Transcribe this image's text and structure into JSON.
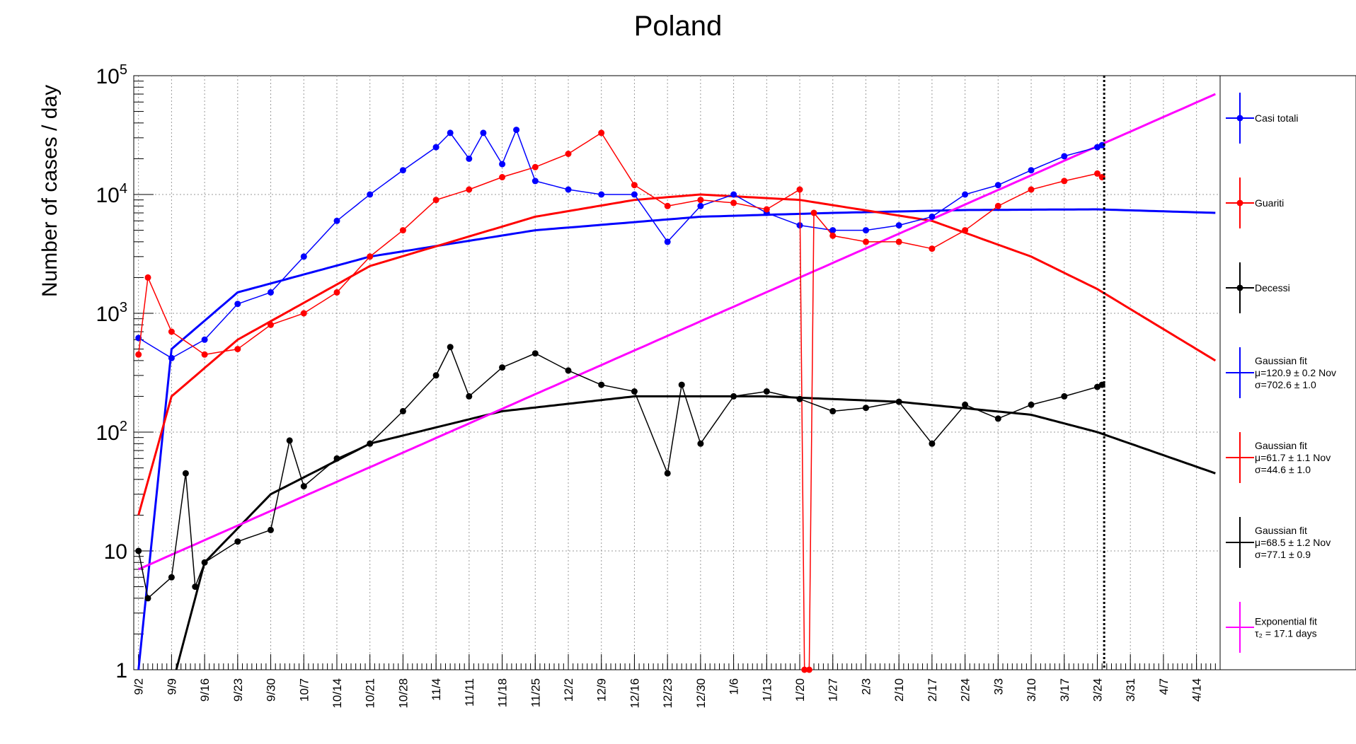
{
  "chart_data": {
    "type": "line",
    "title": "Poland",
    "xlabel": "",
    "ylabel": "Number of cases / day",
    "yscale": "log",
    "ylim": [
      1,
      100000
    ],
    "xlim_days": [
      "2020-09-01",
      "2021-04-19"
    ],
    "grid": true,
    "legend_position": "right",
    "y_tick_labels": [
      {
        "value": 1,
        "text": "1"
      },
      {
        "value": 10,
        "text": "10"
      },
      {
        "value": 100,
        "base": "10",
        "exp": "2"
      },
      {
        "value": 1000,
        "base": "10",
        "exp": "3"
      },
      {
        "value": 10000,
        "base": "10",
        "exp": "4"
      },
      {
        "value": 100000,
        "base": "10",
        "exp": "5"
      }
    ],
    "x_tick_labels": [
      "9/2",
      "9/9",
      "9/16",
      "9/23",
      "9/30",
      "10/7",
      "10/14",
      "10/21",
      "10/28",
      "11/4",
      "11/11",
      "11/18",
      "11/25",
      "12/2",
      "12/9",
      "12/16",
      "12/23",
      "12/30",
      "1/6",
      "1/13",
      "1/20",
      "1/27",
      "2/3",
      "2/10",
      "2/17",
      "2/24",
      "3/3",
      "3/10",
      "3/17",
      "3/24",
      "3/31",
      "4/7",
      "4/14"
    ],
    "series": [
      {
        "name": "Casi totali",
        "color": "#0000ff",
        "start": "2020-09-02",
        "points": [
          [
            "2020-09-02",
            620
          ],
          [
            "2020-09-09",
            420
          ],
          [
            "2020-09-16",
            600
          ],
          [
            "2020-09-23",
            1200
          ],
          [
            "2020-09-30",
            1500
          ],
          [
            "2020-10-07",
            3000
          ],
          [
            "2020-10-14",
            6000
          ],
          [
            "2020-10-21",
            10000
          ],
          [
            "2020-10-28",
            16000
          ],
          [
            "2020-11-04",
            25000
          ],
          [
            "2020-11-07",
            33000
          ],
          [
            "2020-11-11",
            20000
          ],
          [
            "2020-11-14",
            33000
          ],
          [
            "2020-11-18",
            18000
          ],
          [
            "2020-11-21",
            35000
          ],
          [
            "2020-11-25",
            13000
          ],
          [
            "2020-12-02",
            11000
          ],
          [
            "2020-12-09",
            10000
          ],
          [
            "2020-12-16",
            10000
          ],
          [
            "2020-12-23",
            4000
          ],
          [
            "2020-12-30",
            8000
          ],
          [
            "2021-01-06",
            10000
          ],
          [
            "2021-01-13",
            7000
          ],
          [
            "2021-01-20",
            5500
          ],
          [
            "2021-01-27",
            5000
          ],
          [
            "2021-02-03",
            5000
          ],
          [
            "2021-02-10",
            5500
          ],
          [
            "2021-02-17",
            6500
          ],
          [
            "2021-02-24",
            10000
          ],
          [
            "2021-03-03",
            12000
          ],
          [
            "2021-03-10",
            16000
          ],
          [
            "2021-03-17",
            21000
          ],
          [
            "2021-03-24",
            25000
          ],
          [
            "2021-03-25",
            26000
          ]
        ]
      },
      {
        "name": "Guariti",
        "color": "#ff0000",
        "start": "2020-09-02",
        "points": [
          [
            "2020-09-02",
            450
          ],
          [
            "2020-09-04",
            2000
          ],
          [
            "2020-09-09",
            700
          ],
          [
            "2020-09-16",
            450
          ],
          [
            "2020-09-23",
            500
          ],
          [
            "2020-09-30",
            800
          ],
          [
            "2020-10-07",
            1000
          ],
          [
            "2020-10-14",
            1500
          ],
          [
            "2020-10-21",
            3000
          ],
          [
            "2020-10-28",
            5000
          ],
          [
            "2020-11-04",
            9000
          ],
          [
            "2020-11-11",
            11000
          ],
          [
            "2020-11-18",
            14000
          ],
          [
            "2020-11-25",
            17000
          ],
          [
            "2020-12-02",
            22000
          ],
          [
            "2020-12-09",
            33000
          ],
          [
            "2020-12-16",
            12000
          ],
          [
            "2020-12-23",
            8000
          ],
          [
            "2020-12-30",
            9000
          ],
          [
            "2021-01-06",
            8500
          ],
          [
            "2021-01-13",
            7500
          ],
          [
            "2021-01-20",
            11000
          ],
          [
            "2021-01-21",
            1
          ],
          [
            "2021-01-22",
            1
          ],
          [
            "2021-01-23",
            7000
          ],
          [
            "2021-01-27",
            4500
          ],
          [
            "2021-02-03",
            4000
          ],
          [
            "2021-02-10",
            4000
          ],
          [
            "2021-02-17",
            3500
          ],
          [
            "2021-02-24",
            5000
          ],
          [
            "2021-03-03",
            8000
          ],
          [
            "2021-03-10",
            11000
          ],
          [
            "2021-03-17",
            13000
          ],
          [
            "2021-03-24",
            15000
          ],
          [
            "2021-03-25",
            14000
          ]
        ]
      },
      {
        "name": "Decessi",
        "color": "#000000",
        "start": "2020-09-02",
        "points": [
          [
            "2020-09-02",
            10
          ],
          [
            "2020-09-04",
            4
          ],
          [
            "2020-09-09",
            6
          ],
          [
            "2020-09-12",
            45
          ],
          [
            "2020-09-14",
            5
          ],
          [
            "2020-09-16",
            8
          ],
          [
            "2020-09-23",
            12
          ],
          [
            "2020-09-30",
            15
          ],
          [
            "2020-10-04",
            85
          ],
          [
            "2020-10-07",
            35
          ],
          [
            "2020-10-14",
            60
          ],
          [
            "2020-10-21",
            80
          ],
          [
            "2020-10-28",
            150
          ],
          [
            "2020-11-04",
            300
          ],
          [
            "2020-11-07",
            520
          ],
          [
            "2020-11-11",
            200
          ],
          [
            "2020-11-18",
            350
          ],
          [
            "2020-11-25",
            460
          ],
          [
            "2020-12-02",
            330
          ],
          [
            "2020-12-09",
            250
          ],
          [
            "2020-12-16",
            220
          ],
          [
            "2020-12-23",
            45
          ],
          [
            "2020-12-26",
            250
          ],
          [
            "2020-12-30",
            80
          ],
          [
            "2021-01-06",
            200
          ],
          [
            "2021-01-13",
            220
          ],
          [
            "2021-01-20",
            190
          ],
          [
            "2021-01-27",
            150
          ],
          [
            "2021-02-03",
            160
          ],
          [
            "2021-02-10",
            180
          ],
          [
            "2021-02-17",
            80
          ],
          [
            "2021-02-24",
            170
          ],
          [
            "2021-03-03",
            130
          ],
          [
            "2021-03-10",
            170
          ],
          [
            "2021-03-17",
            200
          ],
          [
            "2021-03-24",
            240
          ],
          [
            "2021-03-25",
            250
          ]
        ]
      }
    ],
    "fits": [
      {
        "label": "Gaussian fit",
        "params": [
          "μ=120.9 ± 0.2 Nov",
          "σ=702.6 ± 1.0"
        ],
        "color": "#0000ff",
        "curve": [
          [
            "2020-09-02",
            1
          ],
          [
            "2020-09-09",
            500
          ],
          [
            "2020-09-23",
            1500
          ],
          [
            "2020-10-21",
            3000
          ],
          [
            "2020-11-25",
            5000
          ],
          [
            "2020-12-30",
            6500
          ],
          [
            "2021-01-27",
            7000
          ],
          [
            "2021-02-24",
            7400
          ],
          [
            "2021-03-24",
            7500
          ],
          [
            "2021-04-18",
            7000
          ]
        ]
      },
      {
        "label": "Gaussian fit",
        "params": [
          "μ=61.7 ± 1.1 Nov",
          "σ=44.6 ± 1.0"
        ],
        "color": "#ff0000",
        "curve": [
          [
            "2020-09-02",
            20
          ],
          [
            "2020-09-09",
            200
          ],
          [
            "2020-09-23",
            600
          ],
          [
            "2020-10-21",
            2500
          ],
          [
            "2020-11-25",
            6500
          ],
          [
            "2020-12-16",
            9000
          ],
          [
            "2020-12-30",
            10000
          ],
          [
            "2021-01-20",
            9000
          ],
          [
            "2021-02-17",
            6000
          ],
          [
            "2021-03-10",
            3000
          ],
          [
            "2021-03-24",
            1600
          ],
          [
            "2021-04-18",
            400
          ]
        ]
      },
      {
        "label": "Gaussian fit",
        "params": [
          "μ=68.5 ± 1.2 Nov",
          "σ=77.1 ± 0.9"
        ],
        "color": "#000000",
        "curve": [
          [
            "2020-09-10",
            1
          ],
          [
            "2020-09-16",
            8
          ],
          [
            "2020-09-30",
            30
          ],
          [
            "2020-10-21",
            80
          ],
          [
            "2020-11-18",
            150
          ],
          [
            "2020-12-16",
            200
          ],
          [
            "2021-01-13",
            200
          ],
          [
            "2021-02-10",
            180
          ],
          [
            "2021-03-10",
            140
          ],
          [
            "2021-03-24",
            100
          ],
          [
            "2021-04-18",
            45
          ]
        ]
      },
      {
        "label": "Exponential fit",
        "params": [
          "τ₂ = 17.1 days"
        ],
        "color": "#ff00ff",
        "curve": [
          [
            "2020-09-02",
            7
          ],
          [
            "2021-04-18",
            70000
          ]
        ]
      }
    ]
  }
}
